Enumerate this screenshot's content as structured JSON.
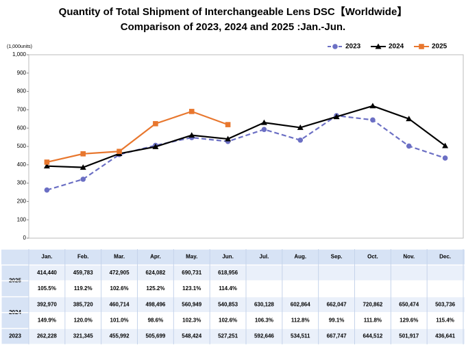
{
  "chart_data": {
    "type": "line",
    "title": [
      "Quantity of Total Shipment of Interchangeable Lens DSC【Worldwide】",
      "Comparison of 2023, 2024 and 2025 :Jan.-Jun."
    ],
    "y_unit": "(1,000units)",
    "categories": [
      "Jan.",
      "Feb.",
      "Mar.",
      "Apr.",
      "May.",
      "Jun.",
      "Jul.",
      "Aug.",
      "Sep.",
      "Oct.",
      "Nov.",
      "Dec."
    ],
    "ylim": [
      0,
      1000
    ],
    "yticks": [
      0,
      100,
      200,
      300,
      400,
      500,
      600,
      700,
      800,
      900,
      {
        "value": 1000,
        "label": "1,000"
      }
    ],
    "legend": "top-right",
    "series": [
      {
        "name": "2023",
        "color": "#6b6fc4",
        "dashed": true,
        "marker": "circle",
        "values": [
          262.228,
          321.345,
          455.992,
          505.699,
          548.424,
          527.251,
          592.646,
          534.511,
          667.747,
          644.512,
          501.917,
          436.641
        ],
        "value_labels": [
          "262,228",
          "321,345",
          "455,992",
          "505,699",
          "548,424",
          "527,251",
          "592,646",
          "534,511",
          "667,747",
          "644,512",
          "501,917",
          "436,641"
        ]
      },
      {
        "name": "2024",
        "color": "#000000",
        "dashed": false,
        "marker": "triangle",
        "values": [
          392.97,
          385.72,
          460.714,
          498.496,
          560.949,
          540.853,
          630.128,
          602.864,
          662.047,
          720.862,
          650.474,
          503.736
        ],
        "value_labels": [
          "392,970",
          "385,720",
          "460,714",
          "498,496",
          "560,949",
          "540,853",
          "630,128",
          "602,864",
          "662,047",
          "720,862",
          "650,474",
          "503,736"
        ],
        "ratios": [
          "149.9%",
          "120.0%",
          "101.0%",
          "98.6%",
          "102.3%",
          "102.6%",
          "106.3%",
          "112.8%",
          "99.1%",
          "111.8%",
          "129.6%",
          "115.4%"
        ]
      },
      {
        "name": "2025",
        "color": "#e8772e",
        "dashed": false,
        "marker": "square",
        "values": [
          414.44,
          459.783,
          472.905,
          624.082,
          690.731,
          618.956,
          null,
          null,
          null,
          null,
          null,
          null
        ],
        "value_labels": [
          "414,440",
          "459,783",
          "472,905",
          "624,082",
          "690,731",
          "618,956",
          null,
          null,
          null,
          null,
          null,
          null
        ],
        "ratios": [
          "105.5%",
          "119.2%",
          "102.6%",
          "125.2%",
          "123.1%",
          "114.4%",
          null,
          null,
          null,
          null,
          null,
          null
        ]
      }
    ]
  }
}
